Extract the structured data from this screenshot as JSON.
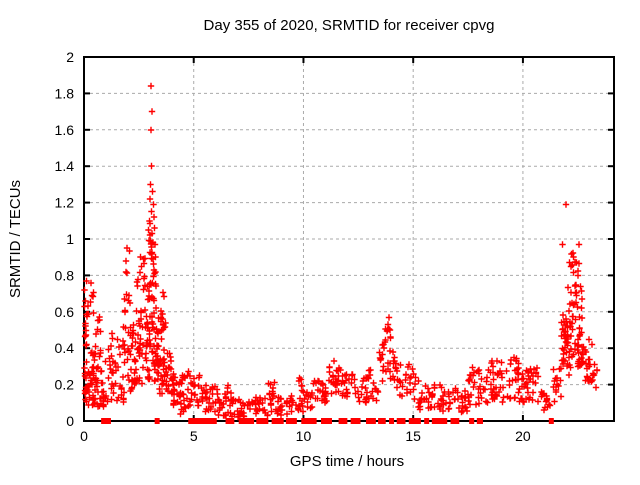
{
  "chart_data": {
    "type": "scatter",
    "title": "Day 355 of 2020, SRMTID for receiver cpvg",
    "xlabel": "GPS time / hours",
    "ylabel": "SRMTID / TECUs",
    "xlim": [
      0,
      24.15
    ],
    "ylim": [
      0,
      2
    ],
    "grid": true,
    "grid_color": "#aaaaaa",
    "border_color": "#000000",
    "marker": "plus",
    "marker_color": "#ff0000",
    "xticks": [
      {
        "v": 0,
        "label": "0"
      },
      {
        "v": 5,
        "label": "5"
      },
      {
        "v": 10,
        "label": "10"
      },
      {
        "v": 15,
        "label": "15"
      },
      {
        "v": 20,
        "label": "20"
      }
    ],
    "yticks": [
      {
        "v": 0,
        "label": "0"
      },
      {
        "v": 0.2,
        "label": "0.2"
      },
      {
        "v": 0.4,
        "label": "0.4"
      },
      {
        "v": 0.6,
        "label": "0.6"
      },
      {
        "v": 0.8,
        "label": "0.8"
      },
      {
        "v": 1,
        "label": "1"
      },
      {
        "v": 1.2,
        "label": "1.2"
      },
      {
        "v": 1.4,
        "label": "1.4"
      },
      {
        "v": 1.6,
        "label": "1.6"
      },
      {
        "v": 1.8,
        "label": "1.8"
      },
      {
        "v": 2,
        "label": "2"
      }
    ],
    "series": [
      {
        "name": "SRMTID",
        "points": [
          [
            3.05,
            1.84
          ],
          [
            3.1,
            1.7
          ],
          [
            3.06,
            1.6
          ],
          [
            3.08,
            1.4
          ],
          [
            3.03,
            1.3
          ],
          [
            3.12,
            1.26
          ],
          [
            3.0,
            1.22
          ],
          [
            3.16,
            1.19
          ],
          [
            3.08,
            1.15
          ],
          [
            3.18,
            1.12
          ],
          [
            2.98,
            1.1
          ],
          [
            3.22,
            1.06
          ],
          [
            3.1,
            1.03
          ],
          [
            3.02,
            0.99
          ],
          [
            2.95,
            1.05
          ],
          [
            3.14,
            0.98
          ],
          [
            21.96,
            1.19
          ],
          [
            21.8,
            0.97
          ],
          [
            22.55,
            0.97
          ],
          [
            22.3,
            0.9
          ],
          [
            22.45,
            0.87
          ],
          [
            22.2,
            0.85
          ],
          [
            13.9,
            0.57
          ],
          [
            13.85,
            0.53
          ],
          [
            13.95,
            0.5
          ],
          [
            11.4,
            0.33
          ],
          [
            0.03,
            0.72
          ],
          [
            0.06,
            0.66
          ],
          [
            0.02,
            0.63
          ],
          [
            1.95,
            0.95
          ],
          [
            1.92,
            0.88
          ],
          [
            9.8,
            0.22
          ],
          [
            6.55,
            0.18
          ],
          [
            8.5,
            0.2
          ],
          [
            19.6,
            0.35
          ],
          [
            18.6,
            0.33
          ]
        ],
        "clusters": [
          [
            0.02,
            0.12,
            0.1,
            0.55,
            18
          ],
          [
            0.02,
            0.45,
            0.55,
            0.78,
            12
          ],
          [
            0.1,
            0.9,
            0.08,
            0.3,
            55
          ],
          [
            0.3,
            0.85,
            0.28,
            0.45,
            12
          ],
          [
            0.55,
            0.8,
            0.45,
            0.62,
            6
          ],
          [
            0.9,
            1.35,
            0.1,
            0.35,
            16
          ],
          [
            1.0,
            1.3,
            0.35,
            0.5,
            5
          ],
          [
            1.3,
            1.85,
            0.1,
            0.35,
            18
          ],
          [
            1.5,
            1.8,
            0.35,
            0.5,
            5
          ],
          [
            1.85,
            2.1,
            0.55,
            0.95,
            10
          ],
          [
            1.8,
            2.3,
            0.15,
            0.55,
            25
          ],
          [
            2.2,
            2.7,
            0.2,
            0.5,
            30
          ],
          [
            2.4,
            2.9,
            0.5,
            0.8,
            18
          ],
          [
            2.55,
            2.85,
            0.8,
            0.97,
            6
          ],
          [
            2.8,
            3.35,
            0.2,
            0.55,
            45
          ],
          [
            2.9,
            3.3,
            0.55,
            0.9,
            25
          ],
          [
            2.95,
            3.25,
            0.9,
            1.12,
            10
          ],
          [
            3.3,
            3.65,
            0.3,
            0.6,
            18
          ],
          [
            3.45,
            3.75,
            0.5,
            0.75,
            10
          ],
          [
            3.35,
            4.1,
            0.15,
            0.38,
            40
          ],
          [
            4.0,
            4.75,
            0.08,
            0.25,
            35
          ],
          [
            4.4,
            4.65,
            0.02,
            0.1,
            8
          ],
          [
            4.7,
            5.3,
            0.08,
            0.28,
            22
          ],
          [
            5.25,
            6.1,
            0.05,
            0.2,
            30
          ],
          [
            6.1,
            7.5,
            0.02,
            0.12,
            40
          ],
          [
            6.4,
            6.7,
            0.12,
            0.2,
            6
          ],
          [
            7.5,
            9.3,
            0.03,
            0.13,
            45
          ],
          [
            8.3,
            8.7,
            0.13,
            0.22,
            8
          ],
          [
            9.3,
            10.4,
            0.05,
            0.18,
            30
          ],
          [
            9.7,
            9.95,
            0.18,
            0.25,
            4
          ],
          [
            10.4,
            11.15,
            0.1,
            0.22,
            25
          ],
          [
            11.15,
            11.7,
            0.15,
            0.3,
            22
          ],
          [
            11.7,
            12.4,
            0.12,
            0.26,
            22
          ],
          [
            12.4,
            13.4,
            0.1,
            0.24,
            28
          ],
          [
            12.9,
            13.15,
            0.24,
            0.3,
            4
          ],
          [
            13.4,
            14.2,
            0.22,
            0.42,
            26
          ],
          [
            13.7,
            14.05,
            0.42,
            0.52,
            8
          ],
          [
            14.15,
            15.2,
            0.12,
            0.32,
            28
          ],
          [
            15.2,
            16.3,
            0.06,
            0.22,
            35
          ],
          [
            16.3,
            17.5,
            0.05,
            0.18,
            35
          ],
          [
            17.5,
            18.35,
            0.08,
            0.3,
            30
          ],
          [
            18.35,
            19.3,
            0.1,
            0.33,
            35
          ],
          [
            19.3,
            20.1,
            0.1,
            0.35,
            35
          ],
          [
            20.1,
            20.8,
            0.1,
            0.3,
            25
          ],
          [
            20.8,
            21.3,
            0.05,
            0.16,
            14
          ],
          [
            21.35,
            21.75,
            0.1,
            0.3,
            14
          ],
          [
            21.75,
            22.2,
            0.25,
            0.6,
            30
          ],
          [
            21.85,
            22.75,
            0.3,
            0.55,
            45
          ],
          [
            22.0,
            22.7,
            0.55,
            0.8,
            25
          ],
          [
            22.1,
            22.6,
            0.8,
            0.93,
            8
          ],
          [
            22.65,
            23.2,
            0.2,
            0.45,
            20
          ],
          [
            23.0,
            23.45,
            0.15,
            0.32,
            10
          ]
        ],
        "zero_runs": [
          [
            0.78,
            0.92
          ],
          [
            1.0,
            1.15
          ],
          [
            3.22,
            3.38
          ],
          [
            4.75,
            6.05
          ],
          [
            6.45,
            6.85
          ],
          [
            7.05,
            7.75
          ],
          [
            7.85,
            8.4
          ],
          [
            8.55,
            9.1
          ],
          [
            9.2,
            9.7
          ],
          [
            9.9,
            10.6
          ],
          [
            10.8,
            11.3
          ],
          [
            11.6,
            12.0
          ],
          [
            12.15,
            12.6
          ],
          [
            12.85,
            13.3
          ],
          [
            13.4,
            13.75
          ],
          [
            13.9,
            14.1
          ],
          [
            14.25,
            14.65
          ],
          [
            14.8,
            15.35
          ],
          [
            15.5,
            15.7
          ],
          [
            15.85,
            16.55
          ],
          [
            16.7,
            17.1
          ],
          [
            17.55,
            17.78
          ],
          [
            17.9,
            18.18
          ],
          [
            21.18,
            21.32
          ]
        ]
      }
    ]
  }
}
